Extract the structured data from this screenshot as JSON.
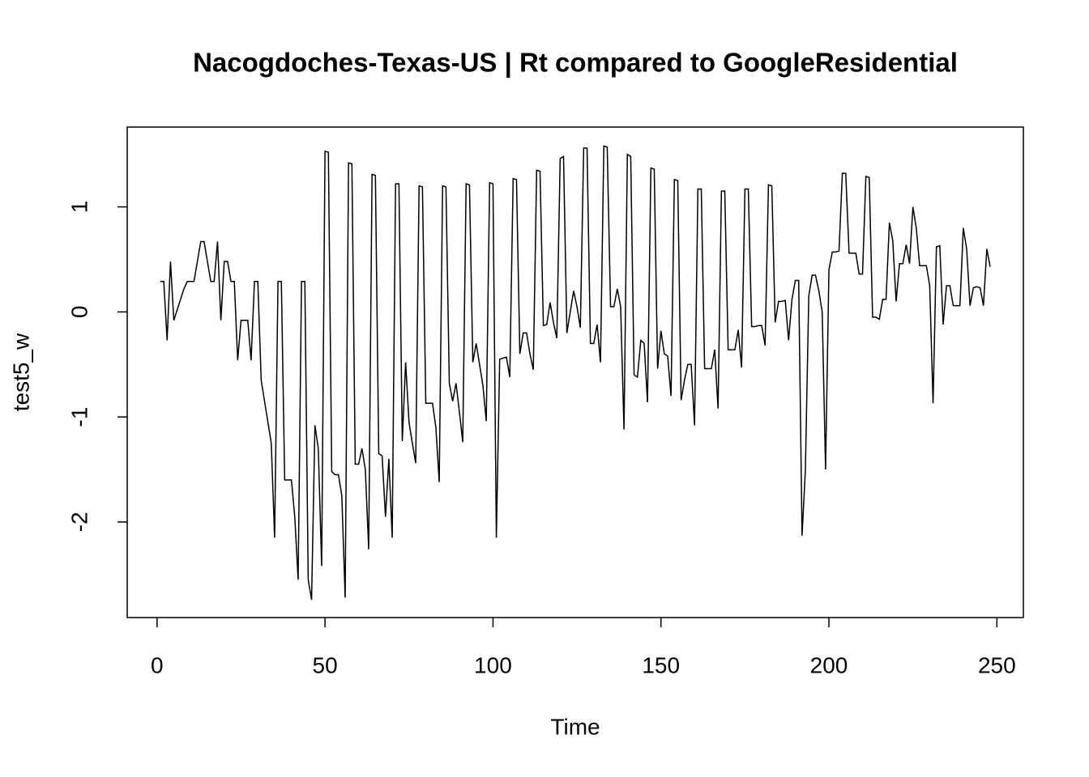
{
  "chart_data": {
    "type": "line",
    "title": "Nacogdoches-Texas-US | Rt compared to GoogleResidential",
    "x_label": "Time",
    "y_label": "test5_w",
    "x": [
      1,
      2,
      3,
      4,
      5,
      6,
      7,
      8,
      9,
      10,
      11,
      12,
      13,
      14,
      15,
      16,
      17,
      18,
      19,
      20,
      21,
      22,
      23,
      24,
      25,
      26,
      27,
      28,
      29,
      30,
      31,
      32,
      33,
      34,
      35,
      36,
      37,
      38,
      39,
      40,
      41,
      42,
      43,
      44,
      45,
      46,
      47,
      48,
      49,
      50,
      51,
      52,
      53,
      54,
      55,
      56,
      57,
      58,
      59,
      60,
      61,
      62,
      63,
      64,
      65,
      66,
      67,
      68,
      69,
      70,
      71,
      72,
      73,
      74,
      75,
      76,
      77,
      78,
      79,
      80,
      81,
      82,
      83,
      84,
      85,
      86,
      87,
      88,
      89,
      90,
      91,
      92,
      93,
      94,
      95,
      96,
      97,
      98,
      99,
      100,
      101,
      102,
      103,
      104,
      105,
      106,
      107,
      108,
      109,
      110,
      111,
      112,
      113,
      114,
      115,
      116,
      117,
      118,
      119,
      120,
      121,
      122,
      123,
      124,
      125,
      126,
      127,
      128,
      129,
      130,
      131,
      132,
      133,
      134,
      135,
      136,
      137,
      138,
      139,
      140,
      141,
      142,
      143,
      144,
      145,
      146,
      147,
      148,
      149,
      150,
      151,
      152,
      153,
      154,
      155,
      156,
      157,
      158,
      159,
      160,
      161,
      162,
      163,
      164,
      165,
      166,
      167,
      168,
      169,
      170,
      171,
      172,
      173,
      174,
      175,
      176,
      177,
      178,
      179,
      180,
      181,
      182,
      183,
      184,
      185,
      186,
      187,
      188,
      189,
      190,
      191,
      192,
      193,
      194,
      195,
      196,
      197,
      198,
      199,
      200,
      201,
      202,
      203,
      204,
      205,
      206,
      207,
      208,
      209,
      210,
      211,
      212,
      213,
      214,
      215,
      216,
      217,
      218,
      219,
      220,
      221,
      222,
      223,
      224,
      225,
      226,
      227,
      228,
      229,
      230,
      231,
      232,
      233,
      234,
      235,
      236,
      237,
      238,
      239,
      240,
      241,
      242,
      243,
      244,
      245,
      246,
      247,
      248
    ],
    "series": [
      {
        "color": "#000000",
        "values": [
          0.29,
          0.29,
          -0.27,
          0.48,
          -0.08,
          0.02,
          0.12,
          0.22,
          0.29,
          0.29,
          0.29,
          0.48,
          0.67,
          0.67,
          0.48,
          0.29,
          0.29,
          0.67,
          -0.08,
          0.48,
          0.48,
          0.29,
          0.29,
          -0.46,
          -0.08,
          -0.08,
          -0.08,
          -0.46,
          0.29,
          0.29,
          -0.65,
          -0.85,
          -1.05,
          -1.25,
          -2.15,
          0.29,
          0.29,
          -1.6,
          -1.6,
          -1.6,
          -1.95,
          -2.55,
          0.29,
          0.29,
          -2.55,
          -2.74,
          -1.08,
          -1.3,
          -2.42,
          1.53,
          1.52,
          -1.52,
          -1.55,
          -1.55,
          -1.75,
          -2.72,
          1.42,
          1.41,
          -1.45,
          -1.45,
          -1.3,
          -1.5,
          -2.26,
          1.31,
          1.3,
          -1.35,
          -1.37,
          -1.95,
          -1.4,
          -2.15,
          1.22,
          1.22,
          -1.23,
          -0.48,
          -1.05,
          -1.25,
          -1.44,
          1.2,
          1.19,
          -0.87,
          -0.87,
          -0.87,
          -1.1,
          -1.62,
          1.2,
          1.19,
          -0.68,
          -0.85,
          -0.68,
          -0.95,
          -1.24,
          1.22,
          1.21,
          -0.48,
          -0.3,
          -0.5,
          -0.7,
          -1.04,
          1.23,
          1.22,
          -2.15,
          -0.45,
          -0.44,
          -0.43,
          -0.62,
          1.27,
          1.26,
          -0.4,
          -0.2,
          -0.2,
          -0.4,
          -0.55,
          1.35,
          1.34,
          -0.13,
          -0.12,
          0.09,
          -0.1,
          -0.25,
          1.46,
          1.48,
          -0.2,
          0.0,
          0.2,
          0.05,
          -0.15,
          1.56,
          1.56,
          -0.3,
          -0.3,
          -0.12,
          -0.48,
          1.58,
          1.57,
          0.05,
          0.05,
          0.22,
          0.05,
          -1.12,
          1.5,
          1.48,
          -0.6,
          -0.62,
          -0.27,
          -0.3,
          -0.86,
          1.37,
          1.36,
          -0.54,
          -0.18,
          -0.4,
          -0.42,
          -0.8,
          1.26,
          1.25,
          -0.84,
          -0.65,
          -0.5,
          -0.5,
          -1.08,
          1.17,
          1.17,
          -0.54,
          -0.54,
          -0.54,
          -0.36,
          -0.92,
          1.15,
          1.15,
          -0.36,
          -0.36,
          -0.36,
          -0.17,
          -0.53,
          1.17,
          1.17,
          -0.14,
          -0.14,
          -0.13,
          -0.13,
          -0.32,
          1.21,
          1.2,
          -0.1,
          0.1,
          0.1,
          0.11,
          -0.27,
          0.12,
          0.3,
          0.3,
          -2.13,
          -1.5,
          0.15,
          0.35,
          0.35,
          0.2,
          0.0,
          -1.5,
          0.4,
          0.57,
          0.57,
          0.58,
          1.32,
          1.32,
          0.56,
          0.56,
          0.56,
          0.36,
          0.36,
          1.29,
          1.28,
          -0.05,
          -0.05,
          -0.07,
          0.12,
          0.12,
          0.85,
          0.68,
          0.1,
          0.46,
          0.46,
          0.64,
          0.46,
          1.0,
          0.8,
          0.44,
          0.44,
          0.44,
          0.25,
          -0.87,
          0.62,
          0.63,
          -0.12,
          0.25,
          0.25,
          0.06,
          0.06,
          0.06,
          0.8,
          0.6,
          0.06,
          0.23,
          0.24,
          0.23,
          0.06,
          0.6,
          0.43
        ]
      }
    ],
    "xlim": [
      -8.88,
      257.88
    ],
    "ylim": [
      -2.91,
      1.76
    ],
    "xticks": [
      0,
      50,
      100,
      150,
      200,
      250
    ],
    "yticks": [
      -2,
      -1,
      0,
      1
    ]
  }
}
